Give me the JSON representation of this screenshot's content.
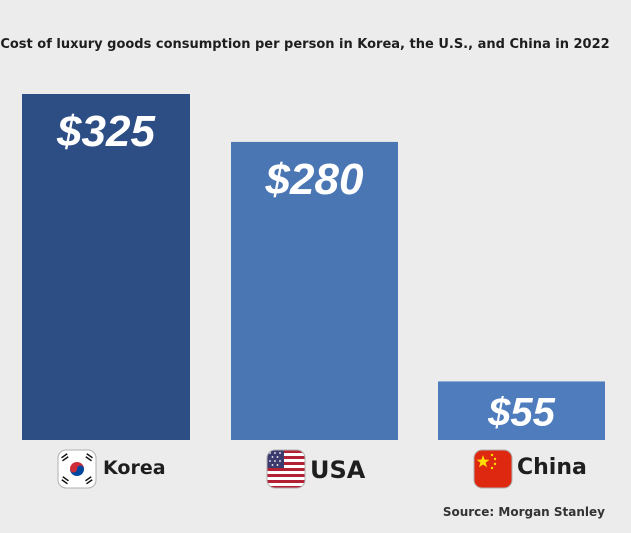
{
  "chart_data": {
    "type": "bar",
    "title": "Cost of luxury goods consumption per person in Korea, the U.S., and China in 2022",
    "categories": [
      "Korea",
      "USA",
      "China"
    ],
    "values": [
      325,
      280,
      55
    ],
    "value_labels": [
      "$325",
      "$280",
      "$55"
    ],
    "ylim": [
      0,
      325
    ],
    "xlabel": "",
    "ylabel": "",
    "grid": false,
    "legend": "none",
    "colors": [
      "#2d4e85",
      "#4a76b3",
      "#4e7cbd"
    ],
    "flag_icons": [
      "south-korea-flag-icon",
      "usa-flag-icon",
      "china-flag-icon"
    ],
    "source": "Source: Morgan Stanley"
  }
}
